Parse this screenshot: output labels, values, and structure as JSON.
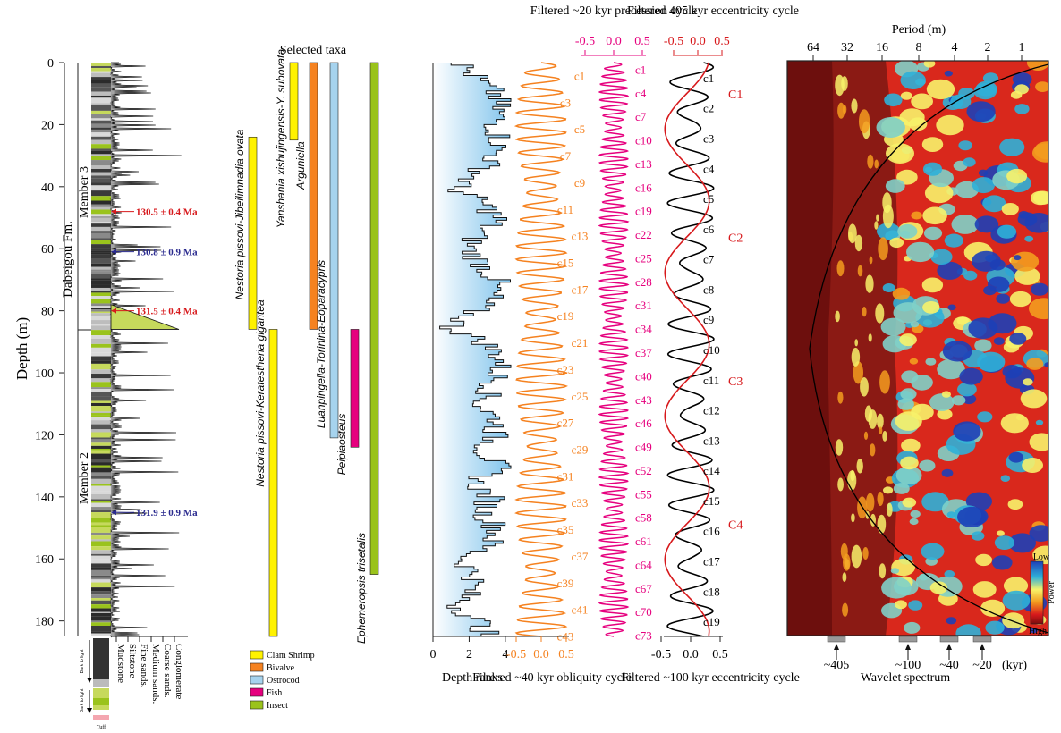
{
  "depth_axis": {
    "label": "Depth (m)",
    "ticks": [
      0,
      20,
      40,
      60,
      80,
      100,
      120,
      140,
      160,
      180
    ],
    "range": [
      0,
      185
    ]
  },
  "formation": {
    "name": "Dabeigou Fm.",
    "members": [
      {
        "label": "Member 3",
        "from": 0,
        "to": 86
      },
      {
        "label": "Member 2",
        "from": 86,
        "to": 185
      }
    ]
  },
  "ages": [
    {
      "label": "130.5 ± 0.4 Ma",
      "depth": 48,
      "color": "#d7191c"
    },
    {
      "label": "130.8 ± 0.9 Ma",
      "depth": 61,
      "color": "#2b2b8f"
    },
    {
      "label": "131.5 ± 0.4 Ma",
      "depth": 80,
      "color": "#d7191c"
    },
    {
      "label": "131.9 ± 0.9 Ma",
      "depth": 145,
      "color": "#2b2b8f"
    }
  ],
  "lithology_legend": {
    "grainsize_labels": [
      "Mudstone",
      "Siltstone",
      "Fine sands.",
      "Medium sands.",
      "Coarse sands.",
      "Conglomerate"
    ],
    "side_labels": [
      "Dark to light",
      "Dark to light",
      "Tuff"
    ]
  },
  "taxa": {
    "title": "Selected taxa",
    "bars": [
      {
        "label": "Yanshania xishujingensis-Y. subovata",
        "from": 0,
        "to": 25,
        "color": "#fff200"
      },
      {
        "label": "Arguniella",
        "from": 0,
        "to": 86,
        "color": "#f58220"
      },
      {
        "label": "Luanpingella-Torinina-Eoparacypris",
        "from": 0,
        "to": 121,
        "color": "#a6d3ee"
      },
      {
        "label": "Ephemeropsis trisetalis",
        "from": 0,
        "to": 165,
        "color": "#9ac31c"
      },
      {
        "label": "Nestoria pissovi-Jibeilimnadia ovata",
        "from": 24,
        "to": 86,
        "color": "#fff200"
      },
      {
        "label": "Nestoria pissovi-Keratestheria gigantea",
        "from": 86,
        "to": 185,
        "color": "#fff200"
      },
      {
        "label": "Peipiaosteus",
        "from": 86,
        "to": 124,
        "color": "#e6007e"
      }
    ],
    "legend": [
      {
        "label": "Clam Shrimp",
        "color": "#fff200"
      },
      {
        "label": "Bivalve",
        "color": "#f58220"
      },
      {
        "label": "Ostrocod",
        "color": "#a6d3ee"
      },
      {
        "label": "Fish",
        "color": "#e6007e"
      },
      {
        "label": "Insect",
        "color": "#9ac31c"
      }
    ]
  },
  "chart_data": [
    {
      "type": "line",
      "title": "",
      "xlabel": "Depth ranks",
      "ylabel": "Depth (m)",
      "xticks": [
        0,
        2,
        4
      ],
      "xlim": [
        0,
        4.5
      ],
      "ylim": [
        0,
        185
      ],
      "series": [
        {
          "depth": [
            0,
            5,
            10,
            15,
            20,
            25,
            30,
            35,
            40,
            45,
            50,
            55,
            60,
            65,
            70,
            75,
            80,
            85,
            90,
            95,
            100,
            105,
            110,
            115,
            120,
            125,
            130,
            135,
            140,
            145,
            150,
            155,
            160,
            165,
            170,
            175,
            180,
            185
          ],
          "value": [
            1.5,
            2.5,
            3.5,
            3.6,
            3.5,
            3.7,
            3.4,
            2.6,
            1.2,
            2.8,
            3.6,
            2.4,
            2.0,
            2.8,
            3.5,
            3.2,
            2.2,
            1.0,
            2.9,
            3.8,
            3.6,
            3.2,
            2.6,
            3.6,
            3.4,
            2.8,
            3.6,
            2.3,
            3.2,
            2.8,
            3.6,
            3.1,
            1.6,
            2.4,
            2.0,
            1.4,
            2.6,
            3.0
          ]
        }
      ]
    },
    {
      "type": "line",
      "title": "",
      "xlabel": "Filtered ~40 kyr obliquity cycle",
      "xticks": [
        -0.5,
        0.0,
        0.5
      ],
      "xlim": [
        -0.5,
        0.5
      ],
      "ylim": [
        0,
        185
      ],
      "color": "#f58220",
      "cycles": 43,
      "labels": [
        "c1",
        "c3",
        "c5",
        "c7",
        "c9",
        "c11",
        "c13",
        "c15",
        "c17",
        "c19",
        "c21",
        "c23",
        "c25",
        "c27",
        "c29",
        "c31",
        "c33",
        "c35",
        "c37",
        "c39",
        "c41",
        "c43"
      ]
    },
    {
      "type": "line",
      "title": "Filtered ~20 kyr precession cycle",
      "xticks": [
        -0.5,
        0.0,
        0.5
      ],
      "xlim": [
        -0.5,
        0.5
      ],
      "ylim": [
        0,
        185
      ],
      "color": "#e6007e",
      "cycles": 73,
      "labels": [
        "c1",
        "c4",
        "c7",
        "c10",
        "c13",
        "c16",
        "c19",
        "c22",
        "c25",
        "c28",
        "c31",
        "c34",
        "c37",
        "c40",
        "c43",
        "c46",
        "c49",
        "c52",
        "c55",
        "c58",
        "c61",
        "c64",
        "c67",
        "c70",
        "c73"
      ]
    },
    {
      "type": "line",
      "title": "Filtered 405 kyr eccentricity cycle",
      "xlabel": "Filtered ~100 kyr eccentricity cycle",
      "top_ticks": [
        -0.5,
        0.0,
        0.5
      ],
      "bottom_ticks": [
        -0.5,
        0.0,
        0.5
      ],
      "xlim": [
        -0.5,
        0.5
      ],
      "ylim": [
        0,
        185
      ],
      "series": [
        {
          "name": "~100 kyr",
          "color": "#000000",
          "cycles": 19,
          "labels": [
            "c1",
            "c2",
            "c3",
            "c4",
            "c5",
            "c6",
            "c7",
            "c8",
            "c9",
            "c10",
            "c11",
            "c12",
            "c13",
            "c14",
            "c15",
            "c16",
            "c17",
            "c18",
            "c19"
          ]
        },
        {
          "name": "405 kyr",
          "color": "#d7191c",
          "cycles": 4,
          "labels": [
            "C1",
            "C2",
            "C3",
            "C4"
          ]
        }
      ]
    },
    {
      "type": "heatmap",
      "title": "Period (m)",
      "xlabel": "Wavelet spectrum",
      "xticks": [
        "64",
        "32",
        "16",
        "8",
        "4",
        "2",
        "1"
      ],
      "ylim": [
        0,
        185
      ],
      "bands": [
        "~405",
        "~100",
        "~40",
        "~20"
      ],
      "band_unit": "(kyr)",
      "colorbar": {
        "top": "Low",
        "bottom": "High",
        "label": "Power"
      }
    }
  ]
}
